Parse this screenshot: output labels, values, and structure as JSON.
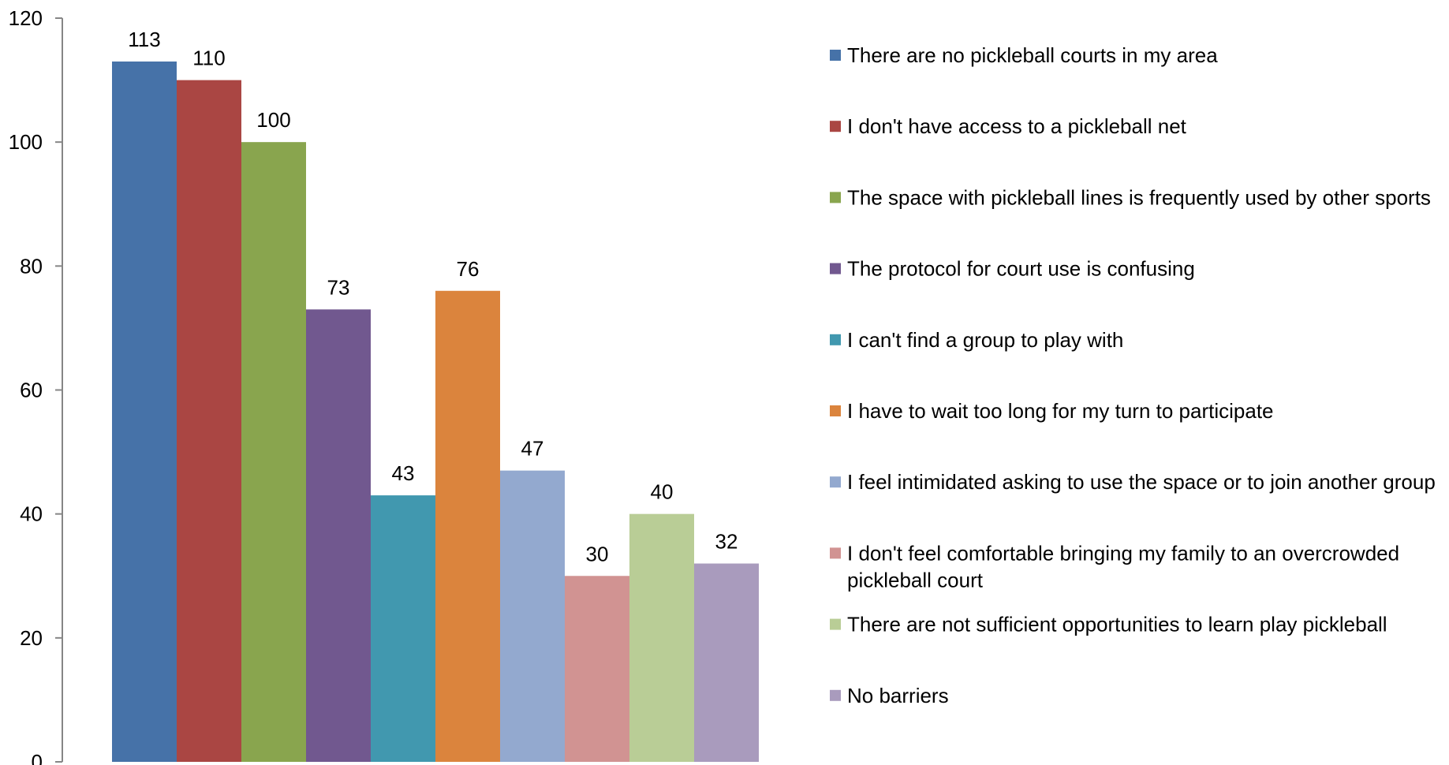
{
  "chart_data": {
    "type": "bar",
    "title": "",
    "xlabel": "",
    "ylabel": "",
    "ylim": [
      0,
      120
    ],
    "yticks": [
      0,
      20,
      40,
      60,
      80,
      100,
      120
    ],
    "grid": false,
    "legend_position": "right",
    "series": [
      {
        "name": "There are no pickleball courts in my area",
        "value": 113,
        "color": "#4672A8"
      },
      {
        "name": "I don't have access to a pickleball net",
        "value": 110,
        "color": "#AA4643"
      },
      {
        "name": "The space with pickleball lines is frequently used by other sports",
        "value": 100,
        "color": "#89A54E"
      },
      {
        "name": "The protocol for court use is confusing",
        "value": 73,
        "color": "#71588F"
      },
      {
        "name": "I can't find a group to play with",
        "value": 43,
        "color": "#4198AF"
      },
      {
        "name": "I have to wait too long for my turn to participate",
        "value": 76,
        "color": "#DB843D"
      },
      {
        "name": "I feel intimidated asking to use the space or to join another group",
        "value": 47,
        "color": "#93A9CF"
      },
      {
        "name": "I don't feel comfortable bringing my family to an overcrowded pickleball court",
        "value": 30,
        "color": "#D19392"
      },
      {
        "name": "There are not sufficient opportunities to learn play pickleball",
        "value": 40,
        "color": "#B9CD96"
      },
      {
        "name": "No barriers",
        "value": 32,
        "color": "#A99BBD"
      }
    ]
  }
}
